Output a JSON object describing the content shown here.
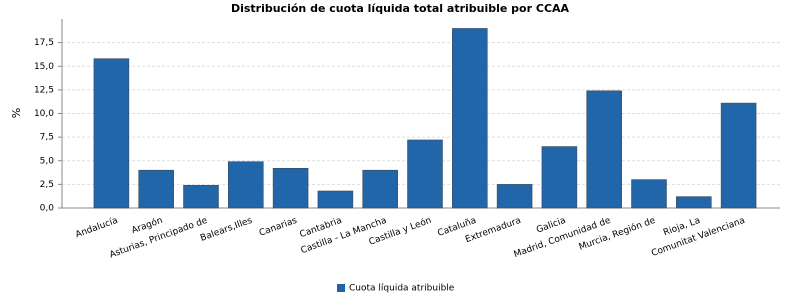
{
  "chart_data": {
    "type": "bar",
    "title": "Distribución de cuota líquida total atribuible por CCAA",
    "y_label": "%",
    "categories": [
      "Andalucía",
      "Aragón",
      "Asturias, Principado de",
      "Balears,Illes",
      "Canarias",
      "Cantabria",
      "Castilla - La Mancha",
      "Castilla y León",
      "Cataluña",
      "Extremadura",
      "Galicia",
      "Madrid, Comunidad de",
      "Murcia, Región de",
      "Rioja, La",
      "Comunitat Valenciana"
    ],
    "series": [
      {
        "name": "Cuota líquida atribuible",
        "color": "#2166a9",
        "values": [
          15.8,
          4.0,
          2.4,
          4.9,
          4.2,
          1.8,
          4.0,
          7.2,
          19.0,
          2.5,
          6.5,
          12.4,
          3.0,
          1.2,
          11.1
        ]
      }
    ],
    "ylim": [
      0,
      20
    ],
    "yticks": [
      {
        "value": 0,
        "label": "0,0"
      },
      {
        "value": 2.5,
        "label": "2,5"
      },
      {
        "value": 5,
        "label": "5,0"
      },
      {
        "value": 7.5,
        "label": "7,5"
      },
      {
        "value": 10,
        "label": "10,0"
      },
      {
        "value": 12.5,
        "label": "12,5"
      },
      {
        "value": 15,
        "label": "15,0"
      },
      {
        "value": 17.5,
        "label": "17,5"
      }
    ],
    "grid": true,
    "legend": "bottom"
  }
}
